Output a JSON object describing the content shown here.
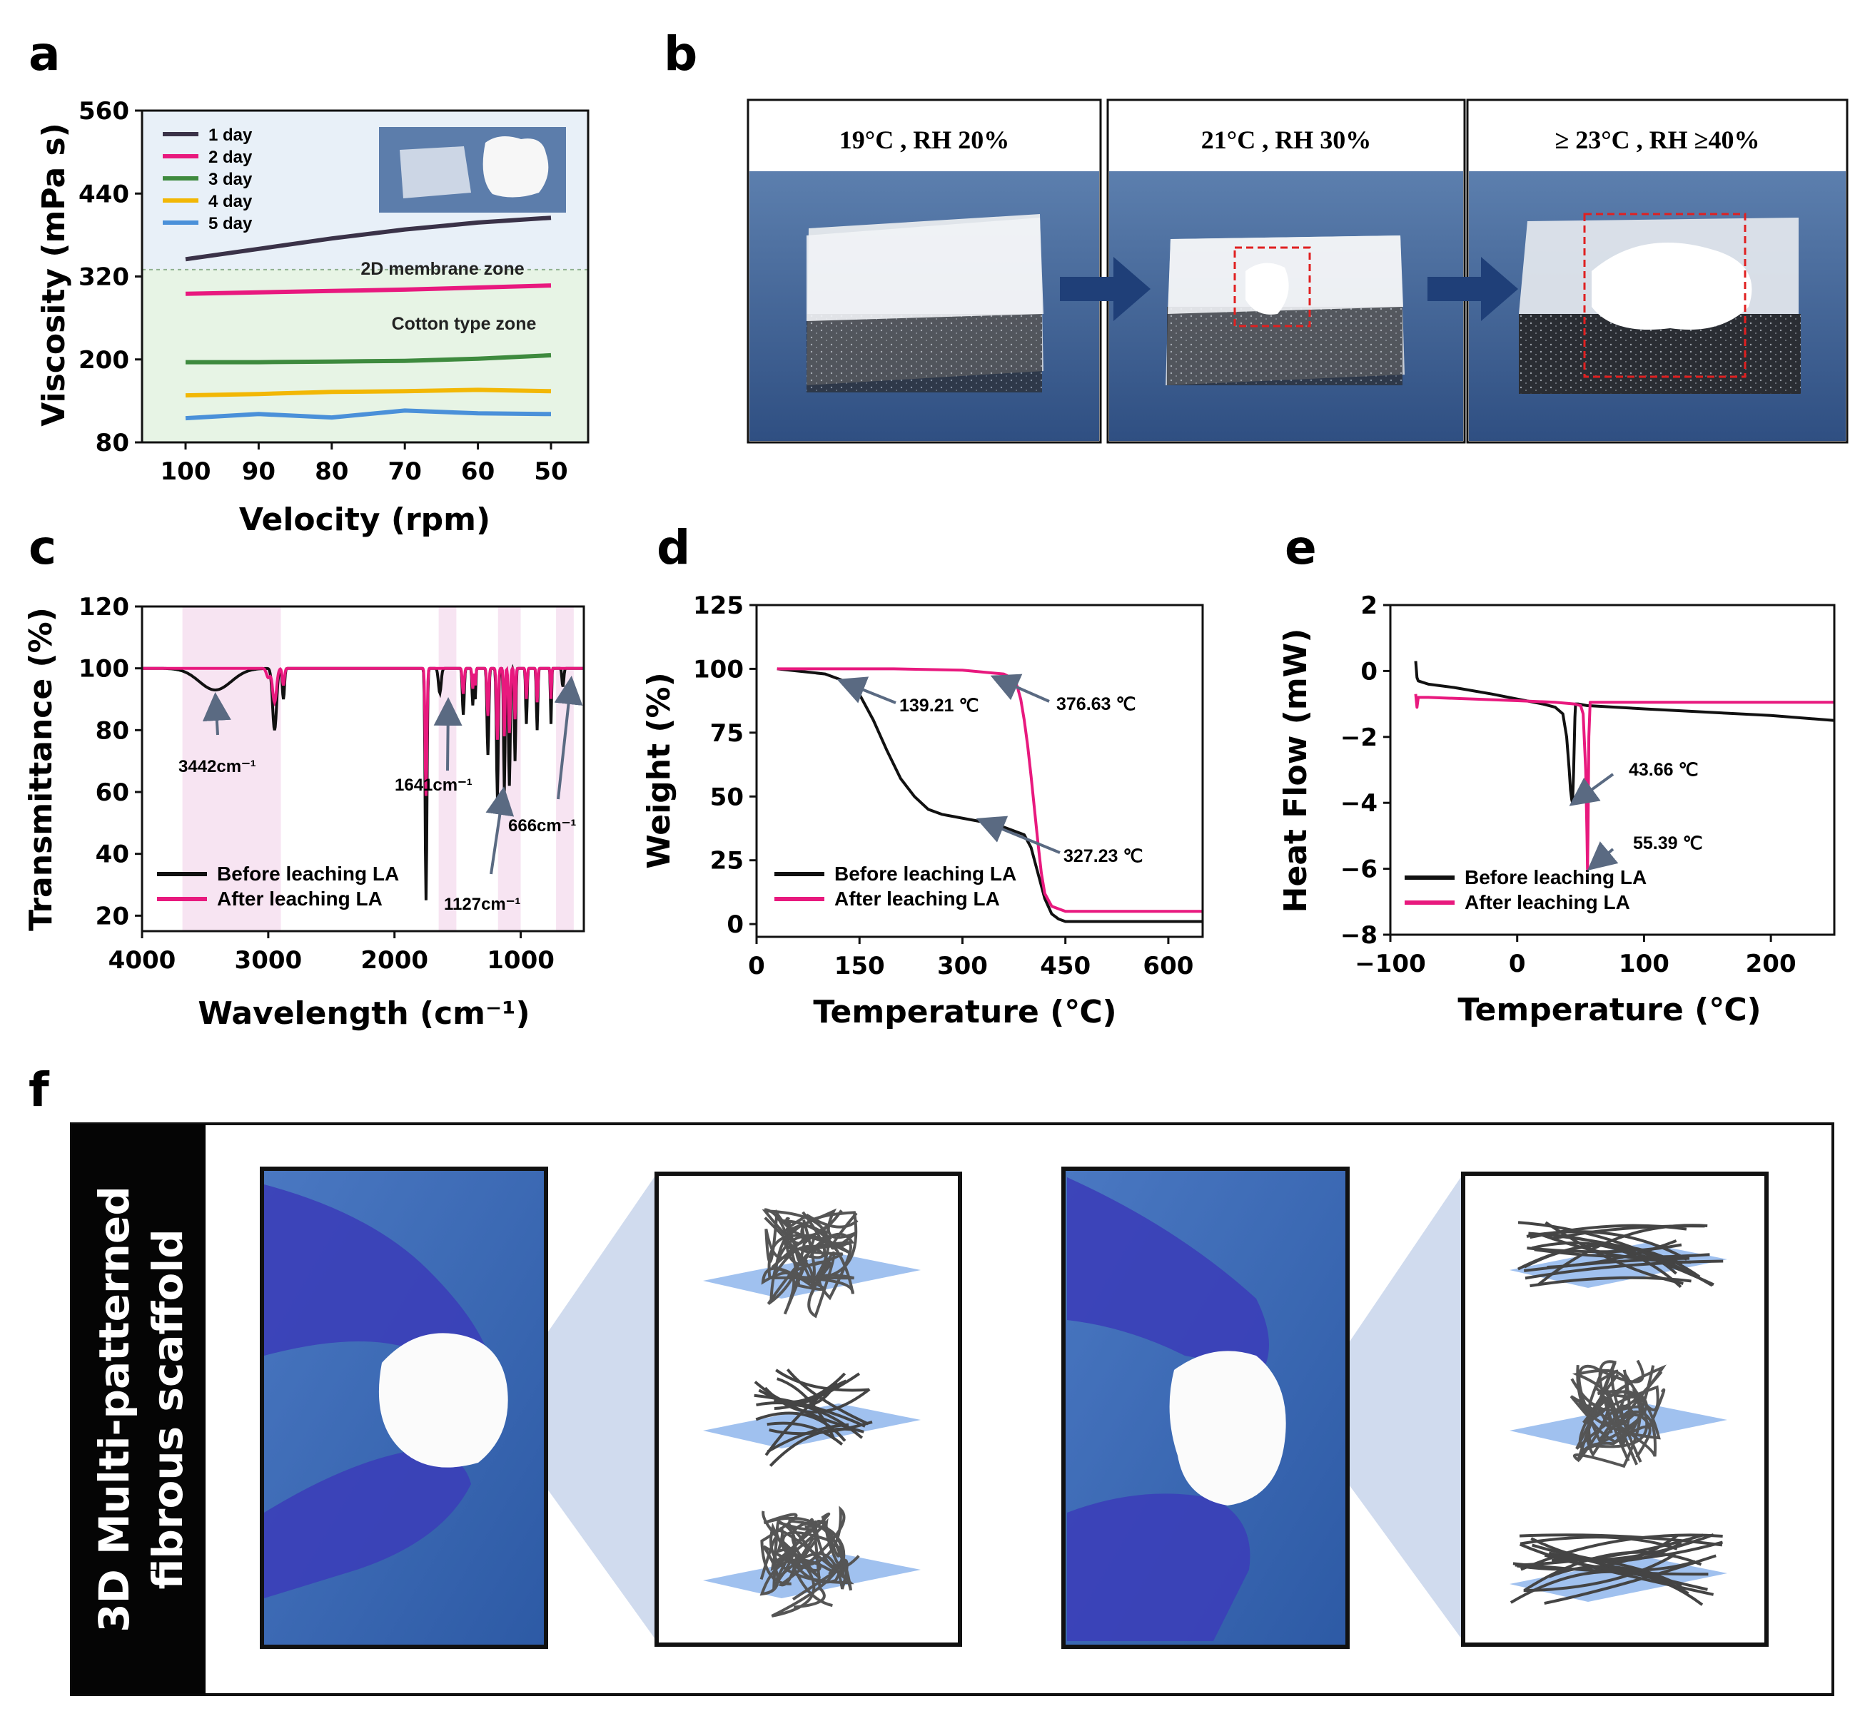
{
  "panel_letters": {
    "a": "a",
    "b": "b",
    "c": "c",
    "d": "d",
    "e": "e",
    "f": "f"
  },
  "chart_data": [
    {
      "id": "a",
      "type": "line",
      "xlabel": "Velocity (rpm)",
      "ylabel": "Viscosity (mPa s)",
      "x": [
        100,
        90,
        80,
        70,
        60,
        50
      ],
      "xlim": [
        100,
        50
      ],
      "ylim": [
        80,
        560
      ],
      "yticks": [
        80,
        200,
        320,
        440,
        560
      ],
      "series": [
        {
          "name": "1 day",
          "color": "#3a3248",
          "values": [
            345,
            360,
            375,
            388,
            398,
            405
          ]
        },
        {
          "name": "2 day",
          "color": "#e8197e",
          "values": [
            295,
            297,
            299,
            301,
            304,
            307
          ]
        },
        {
          "name": "3 day",
          "color": "#3e8a3e",
          "values": [
            196,
            196,
            197,
            198,
            201,
            206
          ]
        },
        {
          "name": "4 day",
          "color": "#f2b705",
          "values": [
            148,
            150,
            153,
            154,
            156,
            154
          ]
        },
        {
          "name": "5 day",
          "color": "#4a90d9",
          "values": [
            115,
            121,
            116,
            126,
            122,
            121
          ]
        }
      ],
      "zone_threshold": 330,
      "zones": {
        "upper": "2D membrane zone",
        "lower": "Cotton type zone"
      },
      "colors": {
        "upper_zone": "#e8f0f8",
        "lower_zone": "#e7f4e5"
      }
    },
    {
      "id": "c",
      "type": "line",
      "xlabel": "Wavelength (cm⁻¹)",
      "ylabel": "Transmittance (%)",
      "xlim": [
        4000,
        500
      ],
      "xticks": [
        4000,
        3000,
        2000,
        1000
      ],
      "ylim": [
        15,
        120
      ],
      "yticks": [
        20,
        40,
        60,
        80,
        100,
        120
      ],
      "bands": [
        [
          3680,
          2900
        ],
        [
          1650,
          1510
        ],
        [
          1180,
          1000
        ],
        [
          720,
          580
        ]
      ],
      "series": [
        {
          "name": "Before leaching LA",
          "color": "#111111"
        },
        {
          "name": "After leaching LA",
          "color": "#e8197e"
        }
      ],
      "annotations": [
        "3442cm⁻¹",
        "1641cm⁻¹",
        "1127cm⁻¹",
        "666cm⁻¹"
      ]
    },
    {
      "id": "d",
      "type": "line",
      "xlabel": "Temperature (℃)",
      "ylabel": "Weight (%)",
      "xlim": [
        0,
        650
      ],
      "xticks": [
        0,
        150,
        300,
        450,
        600
      ],
      "ylim": [
        -5,
        125
      ],
      "yticks": [
        0,
        25,
        50,
        75,
        100,
        125
      ],
      "series": [
        {
          "name": "Before leaching LA",
          "color": "#111111",
          "x": [
            30,
            100,
            130,
            150,
            170,
            190,
            210,
            230,
            250,
            270,
            290,
            310,
            330,
            350,
            370,
            390,
            400,
            410,
            420,
            430,
            440,
            450,
            500,
            600,
            650
          ],
          "y": [
            100,
            98,
            95,
            90,
            80,
            68,
            57,
            50,
            45,
            43,
            42,
            41,
            40,
            39,
            37,
            35,
            30,
            20,
            10,
            4,
            2,
            1,
            1,
            1,
            1
          ]
        },
        {
          "name": "After leaching LA",
          "color": "#e8197e",
          "x": [
            30,
            100,
            200,
            300,
            360,
            375,
            380,
            385,
            390,
            395,
            400,
            405,
            410,
            415,
            420,
            430,
            440,
            450,
            500,
            600,
            650
          ],
          "y": [
            100,
            100,
            100,
            99.5,
            98,
            96,
            93,
            88,
            80,
            70,
            58,
            45,
            32,
            20,
            12,
            7,
            6,
            5,
            5,
            5,
            5
          ]
        }
      ],
      "annotations": [
        "139.21 ℃",
        "376.63 ℃",
        "327.23 ℃"
      ]
    },
    {
      "id": "e",
      "type": "line",
      "xlabel": "Temperature (℃)",
      "ylabel": "Heat Flow (mW)",
      "xlim": [
        -100,
        250
      ],
      "xticks": [
        -100,
        0,
        100,
        200
      ],
      "ylim": [
        -8,
        2
      ],
      "yticks": [
        -8,
        -6,
        -4,
        -2,
        0,
        2
      ],
      "series": [
        {
          "name": "Before leaching LA",
          "color": "#111111",
          "x": [
            -80,
            -79,
            -78,
            -70,
            -50,
            -20,
            0,
            20,
            30,
            36,
            39,
            41,
            42,
            43,
            43.66,
            44.5,
            45.5,
            46,
            48,
            55,
            100,
            200,
            250
          ],
          "y": [
            0.3,
            -0.2,
            -0.3,
            -0.4,
            -0.5,
            -0.7,
            -0.85,
            -1.0,
            -1.1,
            -1.3,
            -2.0,
            -3.0,
            -3.6,
            -3.9,
            -4.0,
            -3.0,
            -1.4,
            -1.0,
            -1.0,
            -1.05,
            -1.15,
            -1.35,
            -1.5
          ]
        },
        {
          "name": "After leaching LA",
          "color": "#e8197e",
          "x": [
            -80,
            -79,
            -78,
            -70,
            0,
            30,
            45,
            50,
            52,
            54,
            55,
            55.39,
            55.8,
            56.5,
            57.5,
            60,
            100,
            250
          ],
          "y": [
            -0.7,
            -1.1,
            -0.8,
            -0.8,
            -0.9,
            -0.95,
            -1.0,
            -1.05,
            -1.3,
            -3.0,
            -5.0,
            -6.0,
            -5.0,
            -2.0,
            -0.95,
            -0.95,
            -0.95,
            -0.95
          ]
        }
      ],
      "annotations": [
        "43.66 ℃",
        "55.39 ℃"
      ]
    }
  ],
  "panel_b": {
    "captions": [
      "19°C , RH 20%",
      "21°C , RH 30%",
      "≥ 23°C , RH ≥40%"
    ]
  },
  "panel_f": {
    "title_line1": "3D Multi-patterned",
    "title_line2": "fibrous scaffold"
  }
}
